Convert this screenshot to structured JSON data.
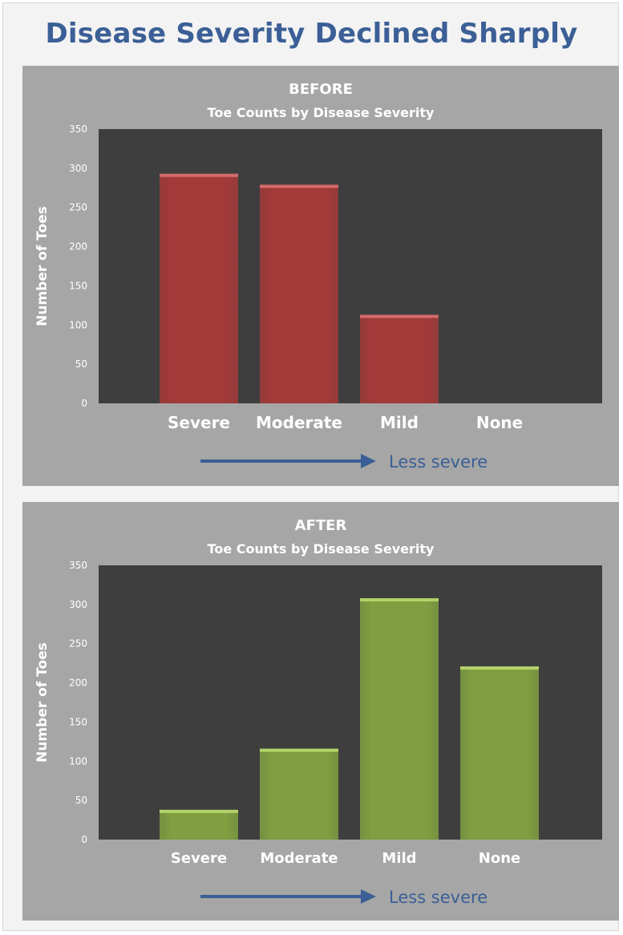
{
  "page_title": "Disease Severity Declined Sharply",
  "chart_data": [
    {
      "type": "bar",
      "panel_label": "BEFORE",
      "title": "Toe Counts by Disease Severity",
      "categories": [
        "Severe",
        "Moderate",
        "Mild",
        "None"
      ],
      "values": [
        293,
        279,
        113,
        0
      ],
      "ylabel": "Number of Toes",
      "xlabel": "",
      "ylim": [
        0,
        350
      ],
      "yticks": [
        0,
        50,
        100,
        150,
        200,
        250,
        300,
        350
      ],
      "grid": false,
      "legend": "none",
      "bar_color": "#a33a3a",
      "bar_top_color": "#d46a6a",
      "plot_bg": "#3e3e3e",
      "annotation": "Less severe",
      "annotation_color": "#3b5f96"
    },
    {
      "type": "bar",
      "panel_label": "AFTER",
      "title": "Toe Counts by Disease Severity",
      "categories": [
        "Severe",
        "Moderate",
        "Mild",
        "None"
      ],
      "values": [
        38,
        116,
        308,
        221
      ],
      "ylabel": "Number of Toes",
      "xlabel": "",
      "ylim": [
        0,
        350
      ],
      "yticks": [
        0,
        50,
        100,
        150,
        200,
        250,
        300,
        350
      ],
      "grid": false,
      "legend": "none",
      "bar_color": "#7f9f40",
      "bar_top_color": "#b3d26a",
      "plot_bg": "#3e3e3e",
      "annotation": "Less severe",
      "annotation_color": "#3b5f96"
    }
  ]
}
